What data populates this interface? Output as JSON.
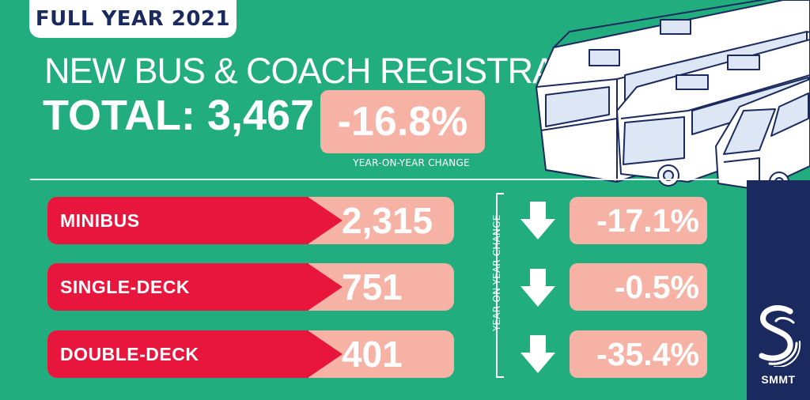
{
  "header": {
    "period_badge": "FULL YEAR 2021",
    "headline": "NEW BUS & COACH REGISTRATIONS",
    "total_label": "TOTAL: 3,467",
    "total_change": "-16.8%",
    "total_change_caption": "YEAR-ON-YEAR CHANGE"
  },
  "breakdown": {
    "vertical_caption": "YEAR-ON-YEAR CHANGE",
    "rows": [
      {
        "label": "MINIBUS",
        "value": "2,315",
        "change": "-17.1%",
        "direction": "down"
      },
      {
        "label": "SINGLE-DECK",
        "value": "751",
        "change": "-0.5%",
        "direction": "down"
      },
      {
        "label": "DOUBLE-DECK",
        "value": "401",
        "change": "-35.4%",
        "direction": "down"
      }
    ]
  },
  "brand": {
    "name": "SMMT",
    "colors": {
      "background_green": "#22ad7e",
      "accent_red": "#e8163c",
      "accent_salmon": "#f6b3a5",
      "navy": "#1a2a5e"
    }
  },
  "icons": {
    "arrow": "down-arrow-icon",
    "logo": "smmt-logo-icon",
    "vehicles": "bus-coach-minibus-illustration"
  }
}
